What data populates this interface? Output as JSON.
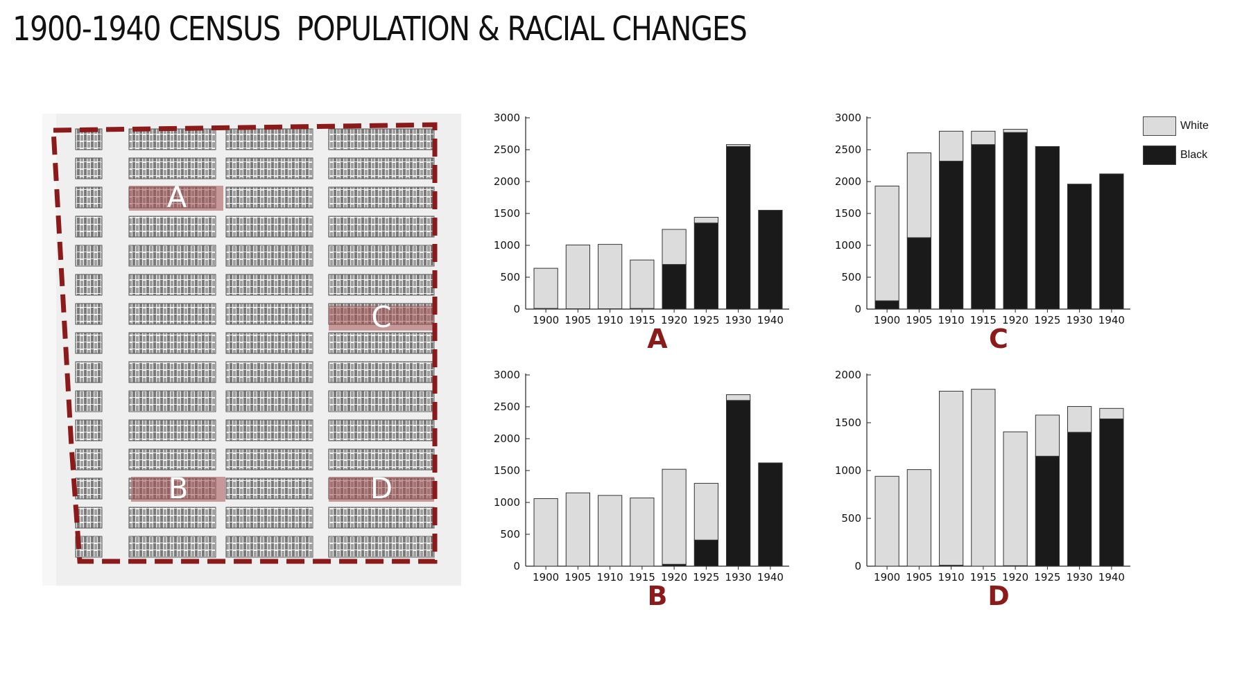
{
  "title": "1900-1940 CENSUS  POPULATION & RACIAL CHANGES",
  "map": {
    "labels": [
      "A",
      "C",
      "B",
      "D"
    ]
  },
  "legend": {
    "white_label": "White",
    "black_label": "Black"
  },
  "colors": {
    "white": "#dcdcdc",
    "black": "#1a1a1a",
    "accent": "#8b1a1a"
  },
  "chart_data": [
    {
      "type": "bar",
      "label": "A",
      "categories": [
        "1900",
        "1905",
        "1910",
        "1915",
        "1920",
        "1925",
        "1930",
        "1940"
      ],
      "series": [
        {
          "name": "White",
          "values": [
            630,
            1000,
            1010,
            760,
            550,
            90,
            30,
            0
          ]
        },
        {
          "name": "Black",
          "values": [
            10,
            5,
            5,
            10,
            700,
            1350,
            2550,
            1550
          ]
        }
      ],
      "ylim": [
        0,
        3000
      ],
      "yticks": [
        0,
        500,
        1000,
        1500,
        2000,
        2500,
        3000
      ]
    },
    {
      "type": "bar",
      "label": "C",
      "categories": [
        "1900",
        "1905",
        "1910",
        "1915",
        "1920",
        "1925",
        "1930",
        "1940"
      ],
      "series": [
        {
          "name": "White",
          "values": [
            1800,
            1330,
            470,
            210,
            50,
            0,
            0,
            0
          ]
        },
        {
          "name": "Black",
          "values": [
            130,
            1120,
            2320,
            2580,
            2770,
            2550,
            1960,
            2120
          ]
        }
      ],
      "ylim": [
        0,
        3000
      ],
      "yticks": [
        0,
        500,
        1000,
        1500,
        2000,
        2500,
        3000
      ]
    },
    {
      "type": "bar",
      "label": "B",
      "categories": [
        "1900",
        "1905",
        "1910",
        "1915",
        "1920",
        "1925",
        "1930",
        "1940"
      ],
      "series": [
        {
          "name": "White",
          "values": [
            1060,
            1150,
            1110,
            1070,
            1490,
            890,
            90,
            0
          ]
        },
        {
          "name": "Black",
          "values": [
            0,
            0,
            0,
            0,
            30,
            410,
            2600,
            1620
          ]
        }
      ],
      "ylim": [
        0,
        3000
      ],
      "yticks": [
        0,
        500,
        1000,
        1500,
        2000,
        2500,
        3000
      ]
    },
    {
      "type": "bar",
      "label": "D",
      "categories": [
        "1900",
        "1905",
        "1910",
        "1915",
        "1920",
        "1925",
        "1930",
        "1940"
      ],
      "series": [
        {
          "name": "White",
          "values": [
            940,
            1010,
            1820,
            1850,
            1400,
            430,
            270,
            110
          ]
        },
        {
          "name": "Black",
          "values": [
            0,
            0,
            10,
            0,
            5,
            1150,
            1400,
            1540
          ]
        }
      ],
      "ylim": [
        0,
        2000
      ],
      "yticks": [
        0,
        500,
        1000,
        1500,
        2000
      ]
    }
  ]
}
